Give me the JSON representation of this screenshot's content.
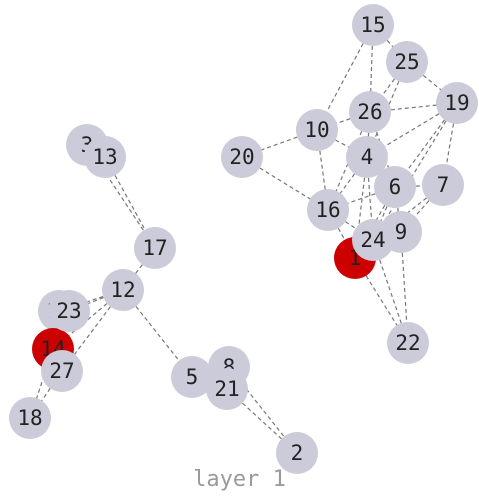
{
  "caption": "layer 1",
  "colors": {
    "node_default": "#cbcbd9",
    "node_highlight": "#cc0000",
    "edge": "#777777"
  },
  "nodes": [
    {
      "id": "1",
      "highlight": true
    },
    {
      "id": "2"
    },
    {
      "id": "3"
    },
    {
      "id": "4"
    },
    {
      "id": "5"
    },
    {
      "id": "6"
    },
    {
      "id": "7"
    },
    {
      "id": "8"
    },
    {
      "id": "9"
    },
    {
      "id": "10"
    },
    {
      "id": "11"
    },
    {
      "id": "12"
    },
    {
      "id": "13"
    },
    {
      "id": "14",
      "highlight": true
    },
    {
      "id": "15"
    },
    {
      "id": "16"
    },
    {
      "id": "17"
    },
    {
      "id": "18"
    },
    {
      "id": "19"
    },
    {
      "id": "20"
    },
    {
      "id": "21"
    },
    {
      "id": "22"
    },
    {
      "id": "23"
    },
    {
      "id": "24"
    },
    {
      "id": "25"
    },
    {
      "id": "26"
    },
    {
      "id": "27"
    }
  ],
  "edges": [
    [
      "3",
      "17"
    ],
    [
      "13",
      "17"
    ],
    [
      "17",
      "12"
    ],
    [
      "12",
      "11"
    ],
    [
      "12",
      "23"
    ],
    [
      "12",
      "14"
    ],
    [
      "12",
      "27"
    ],
    [
      "12",
      "5"
    ],
    [
      "11",
      "14"
    ],
    [
      "23",
      "14"
    ],
    [
      "14",
      "27"
    ],
    [
      "14",
      "18"
    ],
    [
      "27",
      "18"
    ],
    [
      "8",
      "2"
    ],
    [
      "21",
      "2"
    ],
    [
      "15",
      "10"
    ],
    [
      "15",
      "26"
    ],
    [
      "15",
      "25"
    ],
    [
      "25",
      "19"
    ],
    [
      "25",
      "26"
    ],
    [
      "25",
      "4"
    ],
    [
      "26",
      "10"
    ],
    [
      "26",
      "19"
    ],
    [
      "26",
      "4"
    ],
    [
      "26",
      "6"
    ],
    [
      "26",
      "16"
    ],
    [
      "10",
      "20"
    ],
    [
      "10",
      "4"
    ],
    [
      "10",
      "16"
    ],
    [
      "19",
      "4"
    ],
    [
      "19",
      "6"
    ],
    [
      "19",
      "7"
    ],
    [
      "19",
      "24"
    ],
    [
      "4",
      "6"
    ],
    [
      "4",
      "16"
    ],
    [
      "4",
      "24"
    ],
    [
      "4",
      "1"
    ],
    [
      "20",
      "16"
    ],
    [
      "6",
      "16"
    ],
    [
      "6",
      "7"
    ],
    [
      "6",
      "24"
    ],
    [
      "6",
      "9"
    ],
    [
      "6",
      "1"
    ],
    [
      "7",
      "9"
    ],
    [
      "7",
      "24"
    ],
    [
      "16",
      "24"
    ],
    [
      "16",
      "1"
    ],
    [
      "24",
      "9"
    ],
    [
      "24",
      "1"
    ],
    [
      "24",
      "22"
    ],
    [
      "9",
      "1"
    ],
    [
      "9",
      "22"
    ],
    [
      "1",
      "22"
    ]
  ]
}
